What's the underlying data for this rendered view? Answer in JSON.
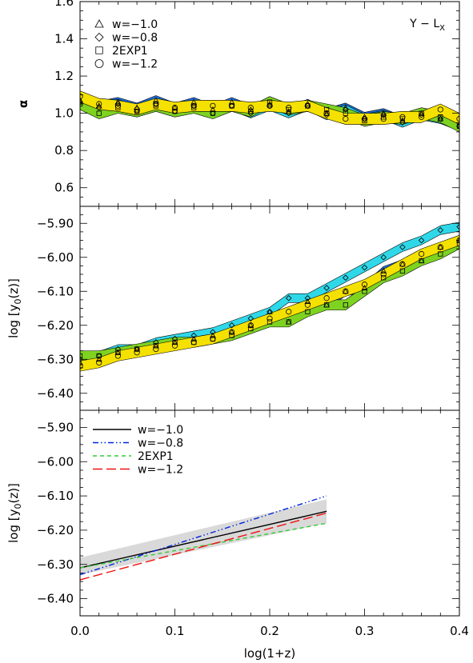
{
  "chart_data": [
    {
      "id": "top",
      "type": "area",
      "ylabel": "α",
      "ylim": [
        0.5,
        1.6
      ],
      "yticks": [
        0.6,
        0.8,
        1.0,
        1.2,
        1.4,
        1.6
      ],
      "ytick_labels": [
        "0.6",
        "0.8",
        "1.0",
        "1.2",
        "1.4",
        "1.6"
      ],
      "xlim": [
        0.0,
        0.4
      ],
      "annotation": "Y − L",
      "annotation_sub": "X",
      "legend_position": "top-left",
      "legend": [
        {
          "marker": "triangle",
          "label": "w=−1.0"
        },
        {
          "marker": "diamond",
          "label": "w=−0.8"
        },
        {
          "marker": "square",
          "label": "2EXP1"
        },
        {
          "marker": "circle",
          "label": "w=−1.2"
        }
      ],
      "x": [
        0.0,
        0.02,
        0.04,
        0.06,
        0.08,
        0.1,
        0.12,
        0.14,
        0.16,
        0.18,
        0.2,
        0.22,
        0.24,
        0.26,
        0.28,
        0.3,
        0.32,
        0.34,
        0.36,
        0.38,
        0.4
      ],
      "series": [
        {
          "name": "w=−1.0",
          "color": "#1e6fd9",
          "marker": "triangle",
          "halfwidth": 0.025,
          "values": [
            1.07,
            1.04,
            1.06,
            1.03,
            1.07,
            1.03,
            1.06,
            1.02,
            1.06,
            1.02,
            1.05,
            1.01,
            1.05,
            1.0,
            1.03,
            0.98,
            1.0,
            0.96,
            1.0,
            0.97,
            0.94
          ]
        },
        {
          "name": "w=−0.8",
          "color": "#2fd8e8",
          "marker": "diamond",
          "halfwidth": 0.025,
          "values": [
            1.06,
            1.03,
            1.05,
            1.01,
            1.05,
            1.01,
            1.04,
            1.0,
            1.04,
            1.0,
            1.04,
            1.0,
            1.04,
            0.99,
            1.02,
            0.97,
            0.99,
            0.95,
            0.99,
            0.97,
            0.93
          ]
        },
        {
          "name": "2EXP1",
          "color": "#7ed321",
          "marker": "square",
          "halfwidth": 0.03,
          "values": [
            1.05,
            1.0,
            1.03,
            1.01,
            1.04,
            1.01,
            1.03,
            1.0,
            1.04,
            1.01,
            1.06,
            1.02,
            1.04,
            1.02,
            1.0,
            0.96,
            0.98,
            0.97,
            1.0,
            0.98,
            0.93
          ]
        },
        {
          "name": "w=−1.2",
          "color": "#f5e100",
          "marker": "circle",
          "halfwidth": 0.03,
          "values": [
            1.09,
            1.05,
            1.04,
            1.02,
            1.05,
            1.03,
            1.04,
            1.04,
            1.04,
            1.03,
            1.04,
            1.03,
            1.04,
            1.0,
            0.97,
            0.97,
            0.97,
            0.98,
            0.98,
            1.02,
            0.97
          ]
        }
      ]
    },
    {
      "id": "middle",
      "type": "area",
      "ylabel": "log [y0(z)]",
      "ylabel_main": "log [y",
      "ylabel_sub": "0",
      "ylabel_tail": "(z)]",
      "ylim": [
        -6.45,
        -5.85
      ],
      "yticks": [
        -6.4,
        -6.3,
        -6.2,
        -6.1,
        -6.0,
        -5.9
      ],
      "ytick_labels": [
        "−6.40",
        "−6.30",
        "−6.20",
        "−6.10",
        "−6.00",
        "−5.90"
      ],
      "xlim": [
        0.0,
        0.4
      ],
      "x": [
        0.0,
        0.02,
        0.04,
        0.06,
        0.08,
        0.1,
        0.12,
        0.14,
        0.16,
        0.18,
        0.2,
        0.22,
        0.24,
        0.26,
        0.28,
        0.3,
        0.32,
        0.34,
        0.36,
        0.38,
        0.4
      ],
      "series": [
        {
          "name": "w=−1.0",
          "color": "#1e6fd9",
          "marker": "triangle",
          "halfwidth": 0.013,
          "values": [
            -6.31,
            -6.3,
            -6.28,
            -6.27,
            -6.26,
            -6.25,
            -6.24,
            -6.23,
            -6.22,
            -6.2,
            -6.16,
            -6.19,
            -6.13,
            -6.14,
            -6.1,
            -6.09,
            -6.04,
            -6.02,
            -6.01,
            -5.97,
            -5.95
          ]
        },
        {
          "name": "w=−0.8",
          "color": "#2fd8e8",
          "marker": "diamond",
          "halfwidth": 0.013,
          "values": [
            -6.3,
            -6.29,
            -6.27,
            -6.27,
            -6.25,
            -6.24,
            -6.23,
            -6.22,
            -6.2,
            -6.18,
            -6.16,
            -6.12,
            -6.12,
            -6.09,
            -6.06,
            -6.03,
            -6.0,
            -5.97,
            -5.95,
            -5.92,
            -5.91
          ]
        },
        {
          "name": "2EXP1",
          "color": "#7ed321",
          "marker": "square",
          "halfwidth": 0.015,
          "values": [
            -6.29,
            -6.29,
            -6.28,
            -6.27,
            -6.26,
            -6.25,
            -6.25,
            -6.24,
            -6.23,
            -6.21,
            -6.19,
            -6.19,
            -6.16,
            -6.14,
            -6.14,
            -6.1,
            -6.06,
            -6.04,
            -6.01,
            -5.99,
            -5.96
          ]
        },
        {
          "name": "w=−1.2",
          "color": "#f5e100",
          "marker": "circle",
          "halfwidth": 0.015,
          "values": [
            -6.32,
            -6.31,
            -6.29,
            -6.28,
            -6.27,
            -6.26,
            -6.25,
            -6.24,
            -6.22,
            -6.2,
            -6.18,
            -6.16,
            -6.14,
            -6.12,
            -6.1,
            -6.08,
            -6.05,
            -6.02,
            -5.99,
            -5.97,
            -5.95
          ]
        }
      ]
    },
    {
      "id": "bottom",
      "type": "line",
      "ylabel": "log [y0(z)]",
      "ylabel_main": "log [y",
      "ylabel_sub": "0",
      "ylabel_tail": "(z)]",
      "xlabel": "log(1+z)",
      "ylim": [
        -6.45,
        -5.85
      ],
      "yticks": [
        -6.4,
        -6.3,
        -6.2,
        -6.1,
        -6.0,
        -5.9
      ],
      "ytick_labels": [
        "−6.40",
        "−6.30",
        "−6.20",
        "−6.10",
        "−6.00",
        "−5.90"
      ],
      "xlim": [
        0.0,
        0.4
      ],
      "xticks": [
        0.0,
        0.1,
        0.2,
        0.3,
        0.4
      ],
      "xtick_labels": [
        "0.0",
        "0.1",
        "0.2",
        "0.3",
        "0.4"
      ],
      "legend_position": "top-left",
      "legend": [
        {
          "label": "w=−1.0",
          "color": "#000000",
          "dash": "solid"
        },
        {
          "label": "w=−0.8",
          "color": "#0022dd",
          "dash": "dashdotdot"
        },
        {
          "label": "2EXP1",
          "color": "#33cc33",
          "dash": "dashed"
        },
        {
          "label": "w=−1.2",
          "color": "#ee1111",
          "dash": "longdash"
        }
      ],
      "band": {
        "color": "#d9d9d9",
        "x": [
          0.0,
          0.26
        ],
        "lower": [
          -6.33,
          -6.18
        ],
        "upper": [
          -6.28,
          -6.11
        ]
      },
      "series": [
        {
          "name": "w=−1.0",
          "color": "#000000",
          "dash": "solid",
          "x": [
            0.0,
            0.26
          ],
          "values": [
            -6.31,
            -6.145
          ]
        },
        {
          "name": "w=−0.8",
          "color": "#0022dd",
          "dash": "dashdotdot",
          "x": [
            0.0,
            0.26
          ],
          "values": [
            -6.33,
            -6.1
          ]
        },
        {
          "name": "2EXP1",
          "color": "#33cc33",
          "dash": "dashed",
          "x": [
            0.0,
            0.26
          ],
          "values": [
            -6.31,
            -6.18
          ]
        },
        {
          "name": "w=−1.2",
          "color": "#ee1111",
          "dash": "longdash",
          "x": [
            0.0,
            0.26
          ],
          "values": [
            -6.345,
            -6.15
          ]
        }
      ]
    }
  ]
}
